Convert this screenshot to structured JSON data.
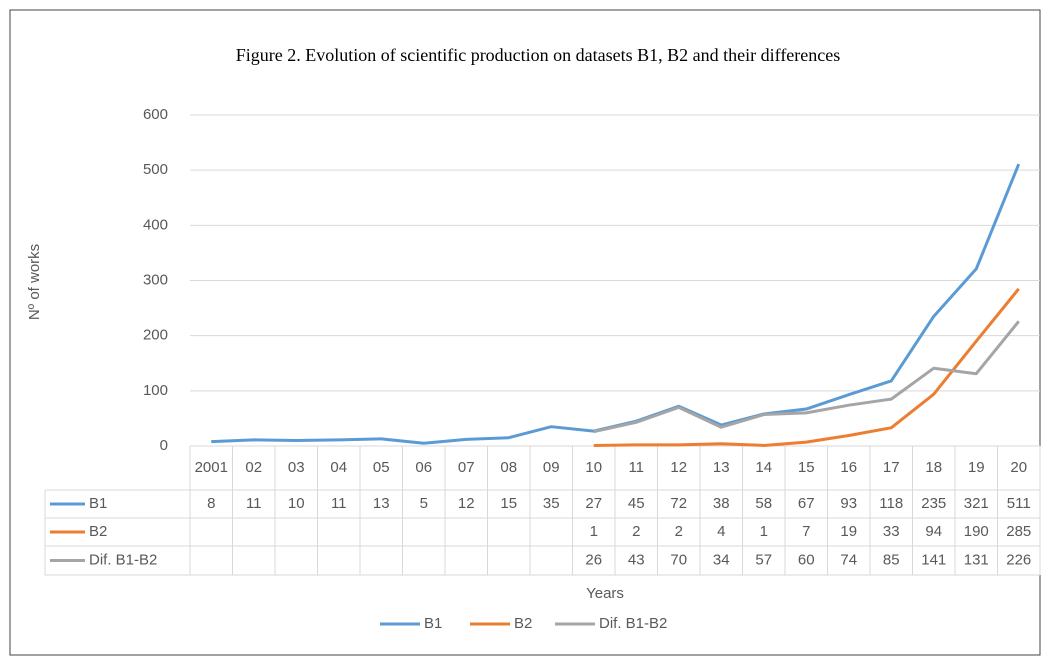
{
  "chart_data": {
    "type": "line",
    "title": "Figure 2. Evolution of scientific production on datasets B1, B2 and their differences",
    "ylabel": "Nº of works",
    "xlabel": "Years",
    "categories": [
      "2001",
      "02",
      "03",
      "04",
      "05",
      "06",
      "07",
      "08",
      "09",
      "10",
      "11",
      "12",
      "13",
      "14",
      "15",
      "16",
      "17",
      "18",
      "19",
      "20"
    ],
    "series": [
      {
        "name": "B1",
        "color": "#5b9bd5",
        "values": [
          8,
          11,
          10,
          11,
          13,
          5,
          12,
          15,
          35,
          27,
          45,
          72,
          38,
          58,
          67,
          93,
          118,
          235,
          321,
          511
        ]
      },
      {
        "name": "B2",
        "color": "#ed7d31",
        "values": [
          null,
          null,
          null,
          null,
          null,
          null,
          null,
          null,
          null,
          1,
          2,
          2,
          4,
          1,
          7,
          19,
          33,
          94,
          190,
          285
        ]
      },
      {
        "name": "Dif. B1-B2",
        "color": "#a5a5a5",
        "values": [
          null,
          null,
          null,
          null,
          null,
          null,
          null,
          null,
          null,
          26,
          43,
          70,
          34,
          57,
          60,
          74,
          85,
          141,
          131,
          226
        ]
      }
    ],
    "ylim": [
      0,
      600
    ],
    "yticks": [
      0,
      100,
      200,
      300,
      400,
      500,
      600
    ],
    "grid": true,
    "legend": "bottom"
  }
}
